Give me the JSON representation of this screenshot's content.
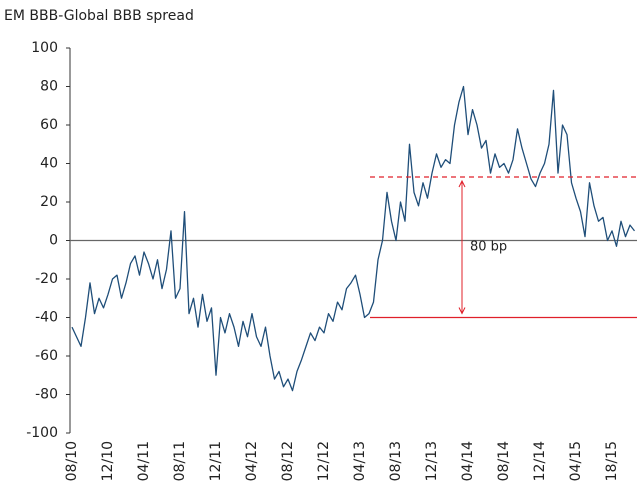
{
  "chart_data": {
    "type": "line",
    "title": "EM BBB-Global BBB spread",
    "categories": [
      "08/10",
      null,
      null,
      null,
      null,
      null,
      null,
      null,
      "12/10",
      null,
      null,
      null,
      null,
      null,
      null,
      null,
      "04/11",
      null,
      null,
      null,
      null,
      null,
      null,
      null,
      "08/11",
      null,
      null,
      null,
      null,
      null,
      null,
      null,
      "12/11",
      null,
      null,
      null,
      null,
      null,
      null,
      null,
      "04/12",
      null,
      null,
      null,
      null,
      null,
      null,
      null,
      "08/12",
      null,
      null,
      null,
      null,
      null,
      null,
      null,
      "12/12",
      null,
      null,
      null,
      null,
      null,
      null,
      null,
      "04/13",
      null,
      null,
      null,
      null,
      null,
      null,
      null,
      "08/13",
      null,
      null,
      null,
      null,
      null,
      null,
      null,
      "12/13",
      null,
      null,
      null,
      null,
      null,
      null,
      null,
      "04/14",
      null,
      null,
      null,
      null,
      null,
      null,
      null,
      "08/14",
      null,
      null,
      null,
      null,
      null,
      null,
      null,
      "12/14",
      null,
      null,
      null,
      null,
      null,
      null,
      null,
      "04/15",
      null,
      null,
      null,
      null,
      null,
      null,
      null,
      "18/15",
      null,
      null,
      null,
      null,
      null
    ],
    "series": [
      {
        "name": "EM BBB-Global BBB spread",
        "color": "#1f4e79",
        "values": [
          -45,
          -50,
          -55,
          -40,
          -22,
          -38,
          -30,
          -35,
          -28,
          -20,
          -18,
          -30,
          -22,
          -12,
          -8,
          -18,
          -6,
          -12,
          -20,
          -10,
          -25,
          -15,
          5,
          -30,
          -25,
          15,
          -38,
          -30,
          -45,
          -28,
          -42,
          -35,
          -70,
          -40,
          -48,
          -38,
          -45,
          -55,
          -42,
          -50,
          -38,
          -50,
          -55,
          -45,
          -60,
          -72,
          -68,
          -76,
          -72,
          -78,
          -68,
          -62,
          -55,
          -48,
          -52,
          -45,
          -48,
          -38,
          -42,
          -32,
          -36,
          -25,
          -22,
          -18,
          -28,
          -40,
          -38,
          -32,
          -10,
          0,
          25,
          10,
          0,
          20,
          10,
          50,
          25,
          18,
          30,
          22,
          35,
          45,
          38,
          42,
          40,
          60,
          72,
          80,
          55,
          68,
          60,
          48,
          52,
          35,
          45,
          38,
          40,
          35,
          42,
          58,
          48,
          40,
          32,
          28,
          35,
          40,
          50,
          78,
          35,
          60,
          55,
          30,
          22,
          15,
          2,
          30,
          18,
          10,
          12,
          0,
          5,
          -3,
          10,
          2,
          8,
          5
        ]
      }
    ],
    "ylim": [
      -100,
      100
    ],
    "yticks": [
      -100,
      -80,
      -60,
      -40,
      -20,
      0,
      20,
      40,
      60,
      80,
      100
    ],
    "zero_line": true,
    "reference_lines": [
      {
        "value": 33,
        "style": "dashed",
        "color": "#e0202a"
      },
      {
        "value": -40,
        "style": "solid",
        "color": "#e0202a"
      }
    ],
    "annotation": "80 bp"
  }
}
